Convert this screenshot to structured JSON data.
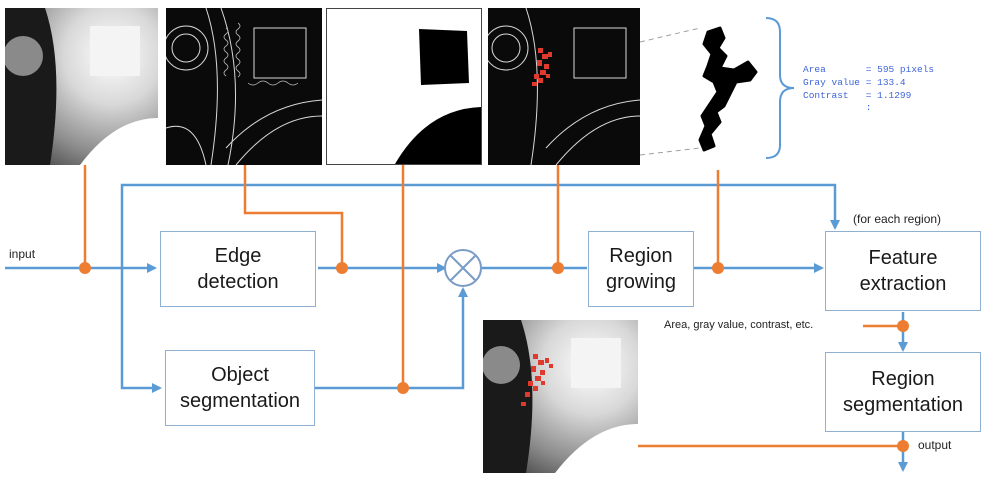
{
  "diagram": {
    "input_label": "input",
    "output_label": "output",
    "for_each_region_label": "(for each region)",
    "features_label": "Area, gray value, contrast, etc.",
    "boxes": {
      "edge_detection": [
        "Edge",
        "detection"
      ],
      "object_segmentation": [
        "Object",
        "segmentation"
      ],
      "region_growing": [
        "Region",
        "growing"
      ],
      "feature_extraction": [
        "Feature",
        "extraction"
      ],
      "region_segmentation": [
        "Region",
        "segmentation"
      ]
    },
    "stats": {
      "area": "Area       = 595 pixels",
      "gray_value": "Gray value = 133.4",
      "contrast": "Contrast   = 1.1299",
      "ellipsis": "           :"
    },
    "colors": {
      "flow_line": "#5b9bd5",
      "tap_line": "#ed7d31",
      "box_border": "#8fb0d0",
      "highlight_region": "#e03a2f",
      "stats_text": "#3e64d8"
    }
  }
}
